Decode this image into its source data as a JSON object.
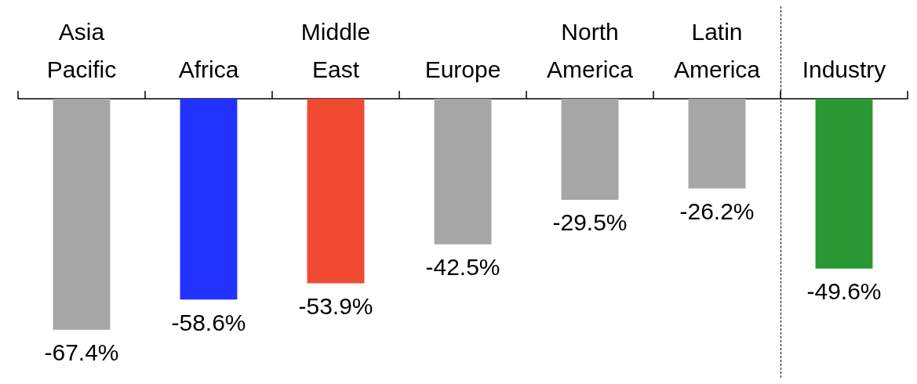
{
  "chart_data": {
    "type": "bar",
    "categories": [
      "Asia\nPacific",
      "Africa",
      "Middle\nEast",
      "Europe",
      "North\nAmerica",
      "Latin\nAmerica",
      "Industry"
    ],
    "values": [
      -67.4,
      -58.6,
      -53.9,
      -42.5,
      -29.5,
      -26.2,
      -49.6
    ],
    "colors": [
      "#a6a6a6",
      "#2233ff",
      "#f04a33",
      "#a6a6a6",
      "#a6a6a6",
      "#a6a6a6",
      "#2a9934"
    ],
    "value_labels": [
      "-67.4%",
      "-58.6%",
      "-53.9%",
      "-42.5%",
      "-29.5%",
      "-26.2%",
      "-49.6%"
    ],
    "grid": false
  }
}
